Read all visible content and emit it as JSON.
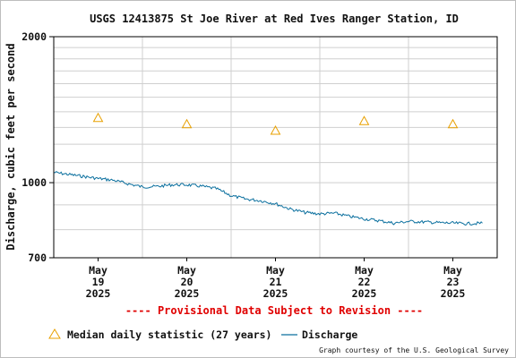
{
  "chart_data": {
    "type": "line",
    "title": "USGS 12413875 St Joe River at Red Ives Ranger Station, ID",
    "ylabel": "Discharge, cubic feet per second",
    "xlabel": "",
    "y_scale": "log",
    "ylim": [
      700,
      2000
    ],
    "xlim": [
      "2025-05-19 00:00",
      "2025-05-24 00:00"
    ],
    "y_tick_labels": [
      {
        "value": 700,
        "label": "700"
      },
      {
        "value": 1000,
        "label": "1000"
      },
      {
        "value": 2000,
        "label": "2000"
      }
    ],
    "x_tick_labels": [
      {
        "date": "2025-05-19",
        "month": "May",
        "day": "19",
        "year": "2025"
      },
      {
        "date": "2025-05-20",
        "month": "May",
        "day": "20",
        "year": "2025"
      },
      {
        "date": "2025-05-21",
        "month": "May",
        "day": "21",
        "year": "2025"
      },
      {
        "date": "2025-05-22",
        "month": "May",
        "day": "22",
        "year": "2025"
      },
      {
        "date": "2025-05-23",
        "month": "May",
        "day": "23",
        "year": "2025"
      }
    ],
    "grid": true,
    "legend_position": "bottom",
    "series": [
      {
        "name": "Median daily statistic (27 years)",
        "kind": "marker",
        "marker": "triangle",
        "color": "#e8a000",
        "points": [
          {
            "x": "2025-05-19 12:00",
            "y": 1360
          },
          {
            "x": "2025-05-20 12:00",
            "y": 1320
          },
          {
            "x": "2025-05-21 12:00",
            "y": 1280
          },
          {
            "x": "2025-05-22 12:00",
            "y": 1340
          },
          {
            "x": "2025-05-23 12:00",
            "y": 1320
          }
        ]
      },
      {
        "name": "Discharge",
        "kind": "line",
        "color": "#0a6f9e",
        "points": [
          {
            "x": "2025-05-19 00:00",
            "y": 1050
          },
          {
            "x": "2025-05-19 04:00",
            "y": 1040
          },
          {
            "x": "2025-05-19 08:00",
            "y": 1030
          },
          {
            "x": "2025-05-19 12:00",
            "y": 1020
          },
          {
            "x": "2025-05-19 16:00",
            "y": 1012
          },
          {
            "x": "2025-05-19 20:00",
            "y": 995
          },
          {
            "x": "2025-05-20 00:00",
            "y": 980
          },
          {
            "x": "2025-05-20 04:00",
            "y": 982
          },
          {
            "x": "2025-05-20 08:00",
            "y": 990
          },
          {
            "x": "2025-05-20 12:00",
            "y": 990
          },
          {
            "x": "2025-05-20 16:00",
            "y": 983
          },
          {
            "x": "2025-05-20 20:00",
            "y": 972
          },
          {
            "x": "2025-05-21 00:00",
            "y": 940
          },
          {
            "x": "2025-05-21 04:00",
            "y": 925
          },
          {
            "x": "2025-05-21 08:00",
            "y": 918
          },
          {
            "x": "2025-05-21 12:00",
            "y": 905
          },
          {
            "x": "2025-05-21 16:00",
            "y": 882
          },
          {
            "x": "2025-05-21 20:00",
            "y": 868
          },
          {
            "x": "2025-05-22 00:00",
            "y": 862
          },
          {
            "x": "2025-05-22 04:00",
            "y": 865
          },
          {
            "x": "2025-05-22 08:00",
            "y": 852
          },
          {
            "x": "2025-05-22 12:00",
            "y": 842
          },
          {
            "x": "2025-05-22 16:00",
            "y": 835
          },
          {
            "x": "2025-05-22 20:00",
            "y": 825
          },
          {
            "x": "2025-05-23 00:00",
            "y": 832
          },
          {
            "x": "2025-05-23 04:00",
            "y": 830
          },
          {
            "x": "2025-05-23 08:00",
            "y": 827
          },
          {
            "x": "2025-05-23 12:00",
            "y": 825
          },
          {
            "x": "2025-05-23 16:00",
            "y": 823
          },
          {
            "x": "2025-05-23 20:00",
            "y": 825
          }
        ]
      }
    ]
  },
  "provisional_note": "---- Provisional Data Subject to Revision ----",
  "credit": "Graph courtesy of the U.S. Geological Survey"
}
